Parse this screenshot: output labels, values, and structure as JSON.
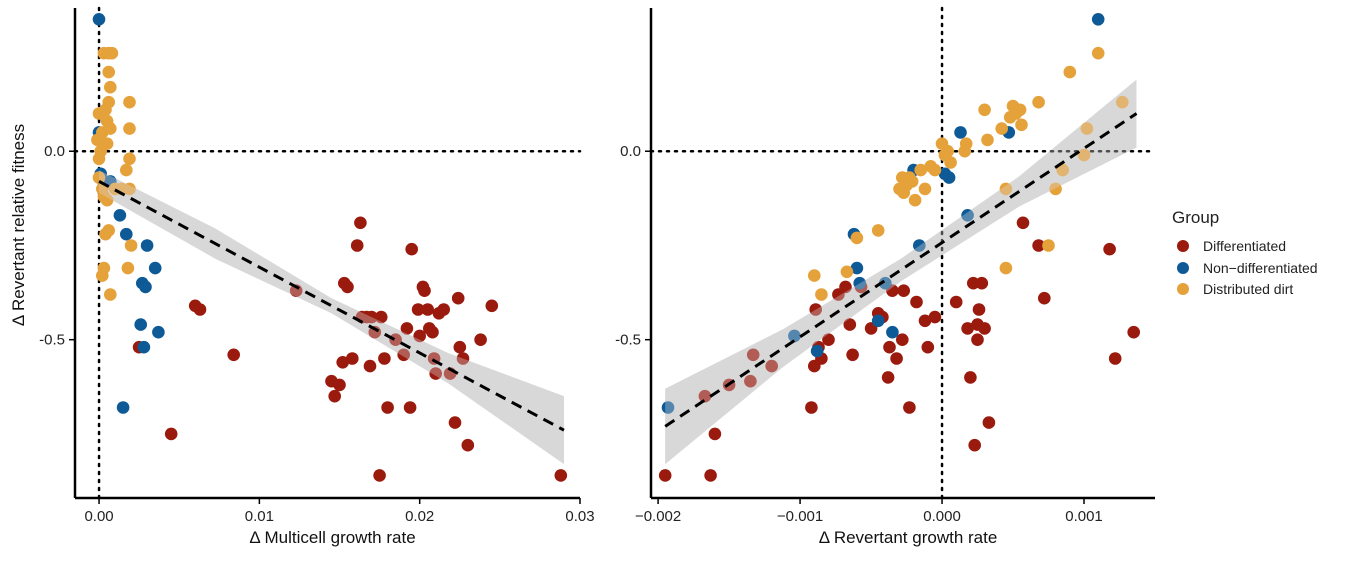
{
  "y_axis_label": "Δ Revertant relative fitness",
  "legend": {
    "title": "Group",
    "items": [
      {
        "label": "Differentiated",
        "color": "#9b1a0e"
      },
      {
        "label": "Non−differentiated",
        "color": "#0e5a96"
      },
      {
        "label": "Distributed dirt",
        "color": "#e5a13a"
      }
    ]
  },
  "chart_data": [
    {
      "type": "scatter",
      "xlabel": "Δ Multicell growth rate",
      "ylabel": "Δ Revertant relative fitness",
      "xlim": [
        -0.0015,
        0.03
      ],
      "ylim": [
        -0.92,
        0.38
      ],
      "xticks": [
        {
          "v": 0,
          "label": "0.00"
        },
        {
          "v": 0.01,
          "label": "0.01"
        },
        {
          "v": 0.02,
          "label": "0.02"
        },
        {
          "v": 0.03,
          "label": "0.03"
        }
      ],
      "yticks": [
        {
          "v": 0,
          "label": "0.0"
        },
        {
          "v": -0.5,
          "label": "-0.5"
        }
      ],
      "reference_lines": {
        "x": 0,
        "y": 0
      },
      "fit": {
        "x0": 0.0,
        "y0": -0.08,
        "x1": 0.029,
        "y1": -0.74,
        "band": [
          0.03,
          0.04,
          0.02,
          0.04,
          0.09
        ]
      },
      "series": [
        {
          "name": "Differentiated",
          "color": "#9b1a0e",
          "points": [
            [
              0.0025,
              -0.52
            ],
            [
              0.0045,
              -0.75
            ],
            [
              0.006,
              -0.41
            ],
            [
              0.0063,
              -0.42
            ],
            [
              0.0084,
              -0.54
            ],
            [
              0.0123,
              -0.37
            ],
            [
              0.0145,
              -0.61
            ],
            [
              0.0147,
              -0.65
            ],
            [
              0.015,
              -0.62
            ],
            [
              0.0152,
              -0.56
            ],
            [
              0.0153,
              -0.35
            ],
            [
              0.0155,
              -0.36
            ],
            [
              0.0158,
              -0.55
            ],
            [
              0.0161,
              -0.25
            ],
            [
              0.0163,
              -0.19
            ],
            [
              0.0164,
              -0.44
            ],
            [
              0.0167,
              -0.44
            ],
            [
              0.0169,
              -0.57
            ],
            [
              0.017,
              -0.44
            ],
            [
              0.0172,
              -0.48
            ],
            [
              0.0175,
              -0.86
            ],
            [
              0.0176,
              -0.44
            ],
            [
              0.0178,
              -0.55
            ],
            [
              0.018,
              -0.68
            ],
            [
              0.0185,
              -0.5
            ],
            [
              0.019,
              -0.54
            ],
            [
              0.0192,
              -0.47
            ],
            [
              0.0194,
              -0.68
            ],
            [
              0.0195,
              -0.26
            ],
            [
              0.0199,
              -0.42
            ],
            [
              0.02,
              -0.49
            ],
            [
              0.0202,
              -0.36
            ],
            [
              0.0203,
              -0.37
            ],
            [
              0.0205,
              -0.42
            ],
            [
              0.0206,
              -0.47
            ],
            [
              0.0208,
              -0.48
            ],
            [
              0.0209,
              -0.55
            ],
            [
              0.021,
              -0.59
            ],
            [
              0.0212,
              -0.43
            ],
            [
              0.0215,
              -0.42
            ],
            [
              0.0219,
              -0.59
            ],
            [
              0.0222,
              -0.72
            ],
            [
              0.0224,
              -0.39
            ],
            [
              0.0225,
              -0.52
            ],
            [
              0.0227,
              -0.55
            ],
            [
              0.023,
              -0.78
            ],
            [
              0.0238,
              -0.5
            ],
            [
              0.0245,
              -0.41
            ],
            [
              0.0288,
              -0.86
            ]
          ]
        },
        {
          "name": "Non−differentiated",
          "color": "#0e5a96",
          "points": [
            [
              0.0,
              0.35
            ],
            [
              0.0,
              0.05
            ],
            [
              0.0001,
              -0.06
            ],
            [
              0.0007,
              -0.08
            ],
            [
              0.0013,
              -0.17
            ],
            [
              0.0015,
              -0.68
            ],
            [
              0.0017,
              -0.22
            ],
            [
              0.0026,
              -0.46
            ],
            [
              0.0027,
              -0.35
            ],
            [
              0.0028,
              -0.52
            ],
            [
              0.0029,
              -0.36
            ],
            [
              0.003,
              -0.25
            ],
            [
              0.0035,
              -0.31
            ],
            [
              0.0037,
              -0.48
            ]
          ]
        },
        {
          "name": "Distributed dirt",
          "color": "#e5a13a",
          "points": [
            [
              -0.0001,
              0.03
            ],
            [
              0.0,
              0.1
            ],
            [
              0.0,
              -0.02
            ],
            [
              0.0,
              -0.07
            ],
            [
              0.0001,
              0.0
            ],
            [
              0.0002,
              -0.1
            ],
            [
              0.0002,
              0.05
            ],
            [
              0.0002,
              -0.33
            ],
            [
              0.0003,
              0.26
            ],
            [
              0.0003,
              -0.31
            ],
            [
              0.0003,
              -0.12
            ],
            [
              0.0004,
              0.11
            ],
            [
              0.0004,
              -0.22
            ],
            [
              0.0005,
              -0.13
            ],
            [
              0.0005,
              0.02
            ],
            [
              0.0005,
              0.08
            ],
            [
              0.0006,
              0.26
            ],
            [
              0.0006,
              0.21
            ],
            [
              0.0006,
              0.13
            ],
            [
              0.0006,
              -0.21
            ],
            [
              0.0007,
              -0.38
            ],
            [
              0.0007,
              0.06
            ],
            [
              0.0007,
              0.17
            ],
            [
              0.0008,
              0.26
            ],
            [
              0.001,
              -0.1
            ],
            [
              0.0014,
              -0.1
            ],
            [
              0.0017,
              -0.05
            ],
            [
              0.0018,
              -0.31
            ],
            [
              0.0019,
              0.13
            ],
            [
              0.0019,
              0.06
            ],
            [
              0.0019,
              -0.02
            ],
            [
              0.0019,
              -0.1
            ],
            [
              0.002,
              -0.25
            ]
          ]
        }
      ]
    },
    {
      "type": "scatter",
      "xlabel": "Δ Revertant growth rate",
      "ylabel": "",
      "xlim": [
        -0.00205,
        0.0015
      ],
      "ylim": [
        -0.92,
        0.38
      ],
      "xticks": [
        {
          "v": -0.002,
          "label": "−0.002"
        },
        {
          "v": -0.001,
          "label": "−0.001"
        },
        {
          "v": 0,
          "label": "0.000"
        },
        {
          "v": 0.001,
          "label": "0.001"
        }
      ],
      "yticks": [
        {
          "v": 0,
          "label": "0.0"
        },
        {
          "v": -0.5,
          "label": "-0.5"
        }
      ],
      "reference_lines": {
        "x": 0,
        "y": 0
      },
      "fit": {
        "x0": -0.00195,
        "y0": -0.73,
        "x1": 0.00137,
        "y1": 0.1,
        "band": [
          0.1,
          0.05,
          0.03,
          0.04,
          0.09
        ]
      },
      "series": [
        {
          "name": "Differentiated",
          "color": "#9b1a0e",
          "points": [
            [
              -0.00195,
              -0.86
            ],
            [
              -0.00167,
              -0.65
            ],
            [
              -0.00163,
              -0.86
            ],
            [
              -0.0016,
              -0.75
            ],
            [
              -0.0015,
              -0.62
            ],
            [
              -0.00135,
              -0.61
            ],
            [
              -0.00133,
              -0.54
            ],
            [
              -0.0012,
              -0.57
            ],
            [
              -0.00092,
              -0.68
            ],
            [
              -0.0009,
              -0.57
            ],
            [
              -0.00089,
              -0.42
            ],
            [
              -0.00087,
              -0.52
            ],
            [
              -0.00085,
              -0.55
            ],
            [
              -0.0008,
              -0.5
            ],
            [
              -0.00073,
              -0.38
            ],
            [
              -0.00068,
              -0.36
            ],
            [
              -0.00065,
              -0.46
            ],
            [
              -0.00063,
              -0.54
            ],
            [
              -0.00057,
              -0.36
            ],
            [
              -0.0005,
              -0.47
            ],
            [
              -0.00045,
              -0.43
            ],
            [
              -0.00042,
              -0.44
            ],
            [
              -0.00038,
              -0.6
            ],
            [
              -0.00037,
              -0.52
            ],
            [
              -0.00035,
              -0.37
            ],
            [
              -0.00032,
              -0.55
            ],
            [
              -0.00028,
              -0.5
            ],
            [
              -0.00027,
              -0.37
            ],
            [
              -0.00023,
              -0.68
            ],
            [
              -0.00018,
              -0.4
            ],
            [
              -0.00012,
              -0.45
            ],
            [
              -0.0001,
              -0.52
            ],
            [
              -5e-05,
              -0.44
            ],
            [
              0.0001,
              -0.4
            ],
            [
              0.00018,
              -0.47
            ],
            [
              0.0002,
              -0.6
            ],
            [
              0.00022,
              -0.35
            ],
            [
              0.00023,
              -0.78
            ],
            [
              0.00025,
              -0.46
            ],
            [
              0.00025,
              -0.5
            ],
            [
              0.00026,
              -0.42
            ],
            [
              0.00028,
              -0.35
            ],
            [
              0.0003,
              -0.47
            ],
            [
              0.00033,
              -0.72
            ],
            [
              0.00057,
              -0.19
            ],
            [
              0.00068,
              -0.25
            ],
            [
              0.00072,
              -0.39
            ],
            [
              0.00118,
              -0.26
            ],
            [
              0.00122,
              -0.55
            ],
            [
              0.00135,
              -0.48
            ]
          ]
        },
        {
          "name": "Non−differentiated",
          "color": "#0e5a96",
          "points": [
            [
              -0.00193,
              -0.68
            ],
            [
              -0.00104,
              -0.49
            ],
            [
              -0.00088,
              -0.53
            ],
            [
              -0.00062,
              -0.22
            ],
            [
              -0.0006,
              -0.31
            ],
            [
              -0.00058,
              -0.35
            ],
            [
              -0.00045,
              -0.45
            ],
            [
              -0.0004,
              -0.35
            ],
            [
              -0.00035,
              -0.48
            ],
            [
              -0.0002,
              -0.05
            ],
            [
              -0.00016,
              -0.25
            ],
            [
              2e-05,
              -0.06
            ],
            [
              5e-05,
              -0.07
            ],
            [
              0.00013,
              0.05
            ],
            [
              0.00018,
              -0.17
            ],
            [
              0.00047,
              0.05
            ],
            [
              0.0011,
              0.35
            ]
          ]
        },
        {
          "name": "Distributed dirt",
          "color": "#e5a13a",
          "points": [
            [
              -0.0009,
              -0.33
            ],
            [
              -0.00085,
              -0.38
            ],
            [
              -0.00067,
              -0.32
            ],
            [
              -0.0006,
              -0.23
            ],
            [
              -0.00045,
              -0.21
            ],
            [
              -0.0003,
              -0.1
            ],
            [
              -0.00028,
              -0.07
            ],
            [
              -0.00027,
              -0.11
            ],
            [
              -0.00025,
              -0.09
            ],
            [
              -0.00023,
              -0.07
            ],
            [
              -0.00021,
              -0.08
            ],
            [
              -0.00019,
              -0.13
            ],
            [
              -0.00015,
              -0.05
            ],
            [
              -0.00012,
              -0.1
            ],
            [
              -8e-05,
              -0.04
            ],
            [
              -5e-05,
              -0.05
            ],
            [
              0.0,
              0.02
            ],
            [
              2e-05,
              -0.01
            ],
            [
              4e-05,
              0.0
            ],
            [
              6e-05,
              -0.03
            ],
            [
              0.00016,
              0.0
            ],
            [
              0.00017,
              0.02
            ],
            [
              0.0003,
              0.11
            ],
            [
              0.00032,
              0.03
            ],
            [
              0.00042,
              0.06
            ],
            [
              0.00045,
              -0.1
            ],
            [
              0.00045,
              -0.31
            ],
            [
              0.00048,
              0.09
            ],
            [
              0.0005,
              0.12
            ],
            [
              0.00052,
              0.1
            ],
            [
              0.00055,
              0.11
            ],
            [
              0.00056,
              0.07
            ],
            [
              0.00068,
              0.13
            ],
            [
              0.00075,
              -0.25
            ],
            [
              0.0008,
              -0.1
            ],
            [
              0.00085,
              -0.05
            ],
            [
              0.0009,
              0.21
            ],
            [
              0.001,
              -0.01
            ],
            [
              0.00102,
              0.06
            ],
            [
              0.0011,
              0.26
            ],
            [
              0.00127,
              0.13
            ]
          ]
        }
      ]
    }
  ]
}
